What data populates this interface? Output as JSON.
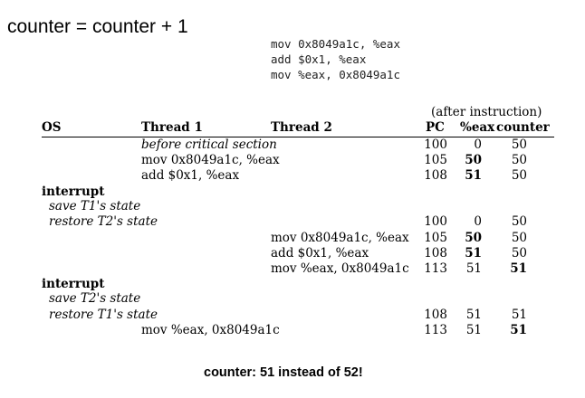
{
  "title": "counter = counter + 1",
  "code": [
    "mov 0x8049a1c, %eax",
    "add $0x1, %eax",
    "mov %eax, 0x8049a1c"
  ],
  "table": {
    "note": "(after instruction)",
    "headers": {
      "os": "OS",
      "thread1": "Thread 1",
      "thread2": "Thread 2",
      "pc": "PC",
      "eax": "%eax",
      "counter": "counter"
    },
    "rows": [
      {
        "thread1": "before critical section",
        "pc": "100",
        "eax": "0",
        "counter": "50"
      },
      {
        "thread1": "mov 0x8049a1c, %eax",
        "pc": "105",
        "eax": "50",
        "counter": "50"
      },
      {
        "thread1": "add $0x1, %eax",
        "pc": "108",
        "eax": "51",
        "counter": "50"
      },
      {
        "os": "interrupt"
      },
      {
        "os": "save T1's state"
      },
      {
        "os": "restore T2's state",
        "pc": "100",
        "eax": "0",
        "counter": "50"
      },
      {
        "thread2": "mov 0x8049a1c, %eax",
        "pc": "105",
        "eax": "50",
        "counter": "50"
      },
      {
        "thread2": "add $0x1, %eax",
        "pc": "108",
        "eax": "51",
        "counter": "50"
      },
      {
        "thread2": "mov %eax, 0x8049a1c",
        "pc": "113",
        "eax": "51",
        "counter": "51"
      },
      {
        "os": "interrupt"
      },
      {
        "os": "save T2's state"
      },
      {
        "os": "restore T1's state",
        "pc": "108",
        "eax": "51",
        "counter": "51"
      },
      {
        "thread1": "mov %eax, 0x8049a1c",
        "pc": "113",
        "eax": "51",
        "counter": "51"
      }
    ]
  },
  "caption": "counter: 51 instead of 52!"
}
